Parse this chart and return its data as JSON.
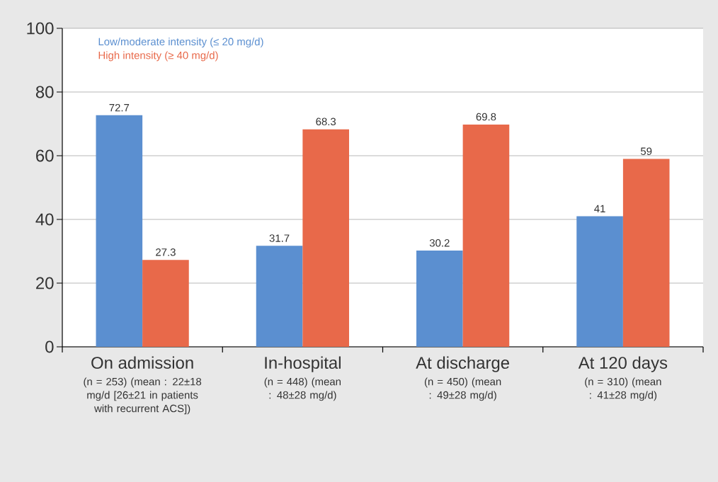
{
  "chart_data": {
    "type": "bar",
    "categories": [
      "On admission",
      "In-hospital",
      "At discharge",
      "At 120 days"
    ],
    "series": [
      {
        "name": "Low/moderate intensity (≤ 20 mg/d)",
        "color": "#5b8fd0",
        "values": [
          72.7,
          31.7,
          30.2,
          41
        ]
      },
      {
        "name": "High intensity (≥ 40 mg/d)",
        "color": "#e8694a",
        "values": [
          27.3,
          68.3,
          69.8,
          59
        ]
      }
    ],
    "annotations": [
      "(n = 253) (mean : 22±18 mg/d [26±21 in patients with recurrent ACS])",
      "(n = 448) (mean : 48±28 mg/d)",
      "(n = 450) (mean : 49±28 mg/d)",
      "(n = 310) (mean : 41±28 mg/d)"
    ],
    "ylim": [
      0,
      100
    ],
    "yticks": [
      0,
      20,
      40,
      60,
      80,
      100
    ],
    "grid": "y",
    "legend": "top left",
    "data_labels": true
  }
}
